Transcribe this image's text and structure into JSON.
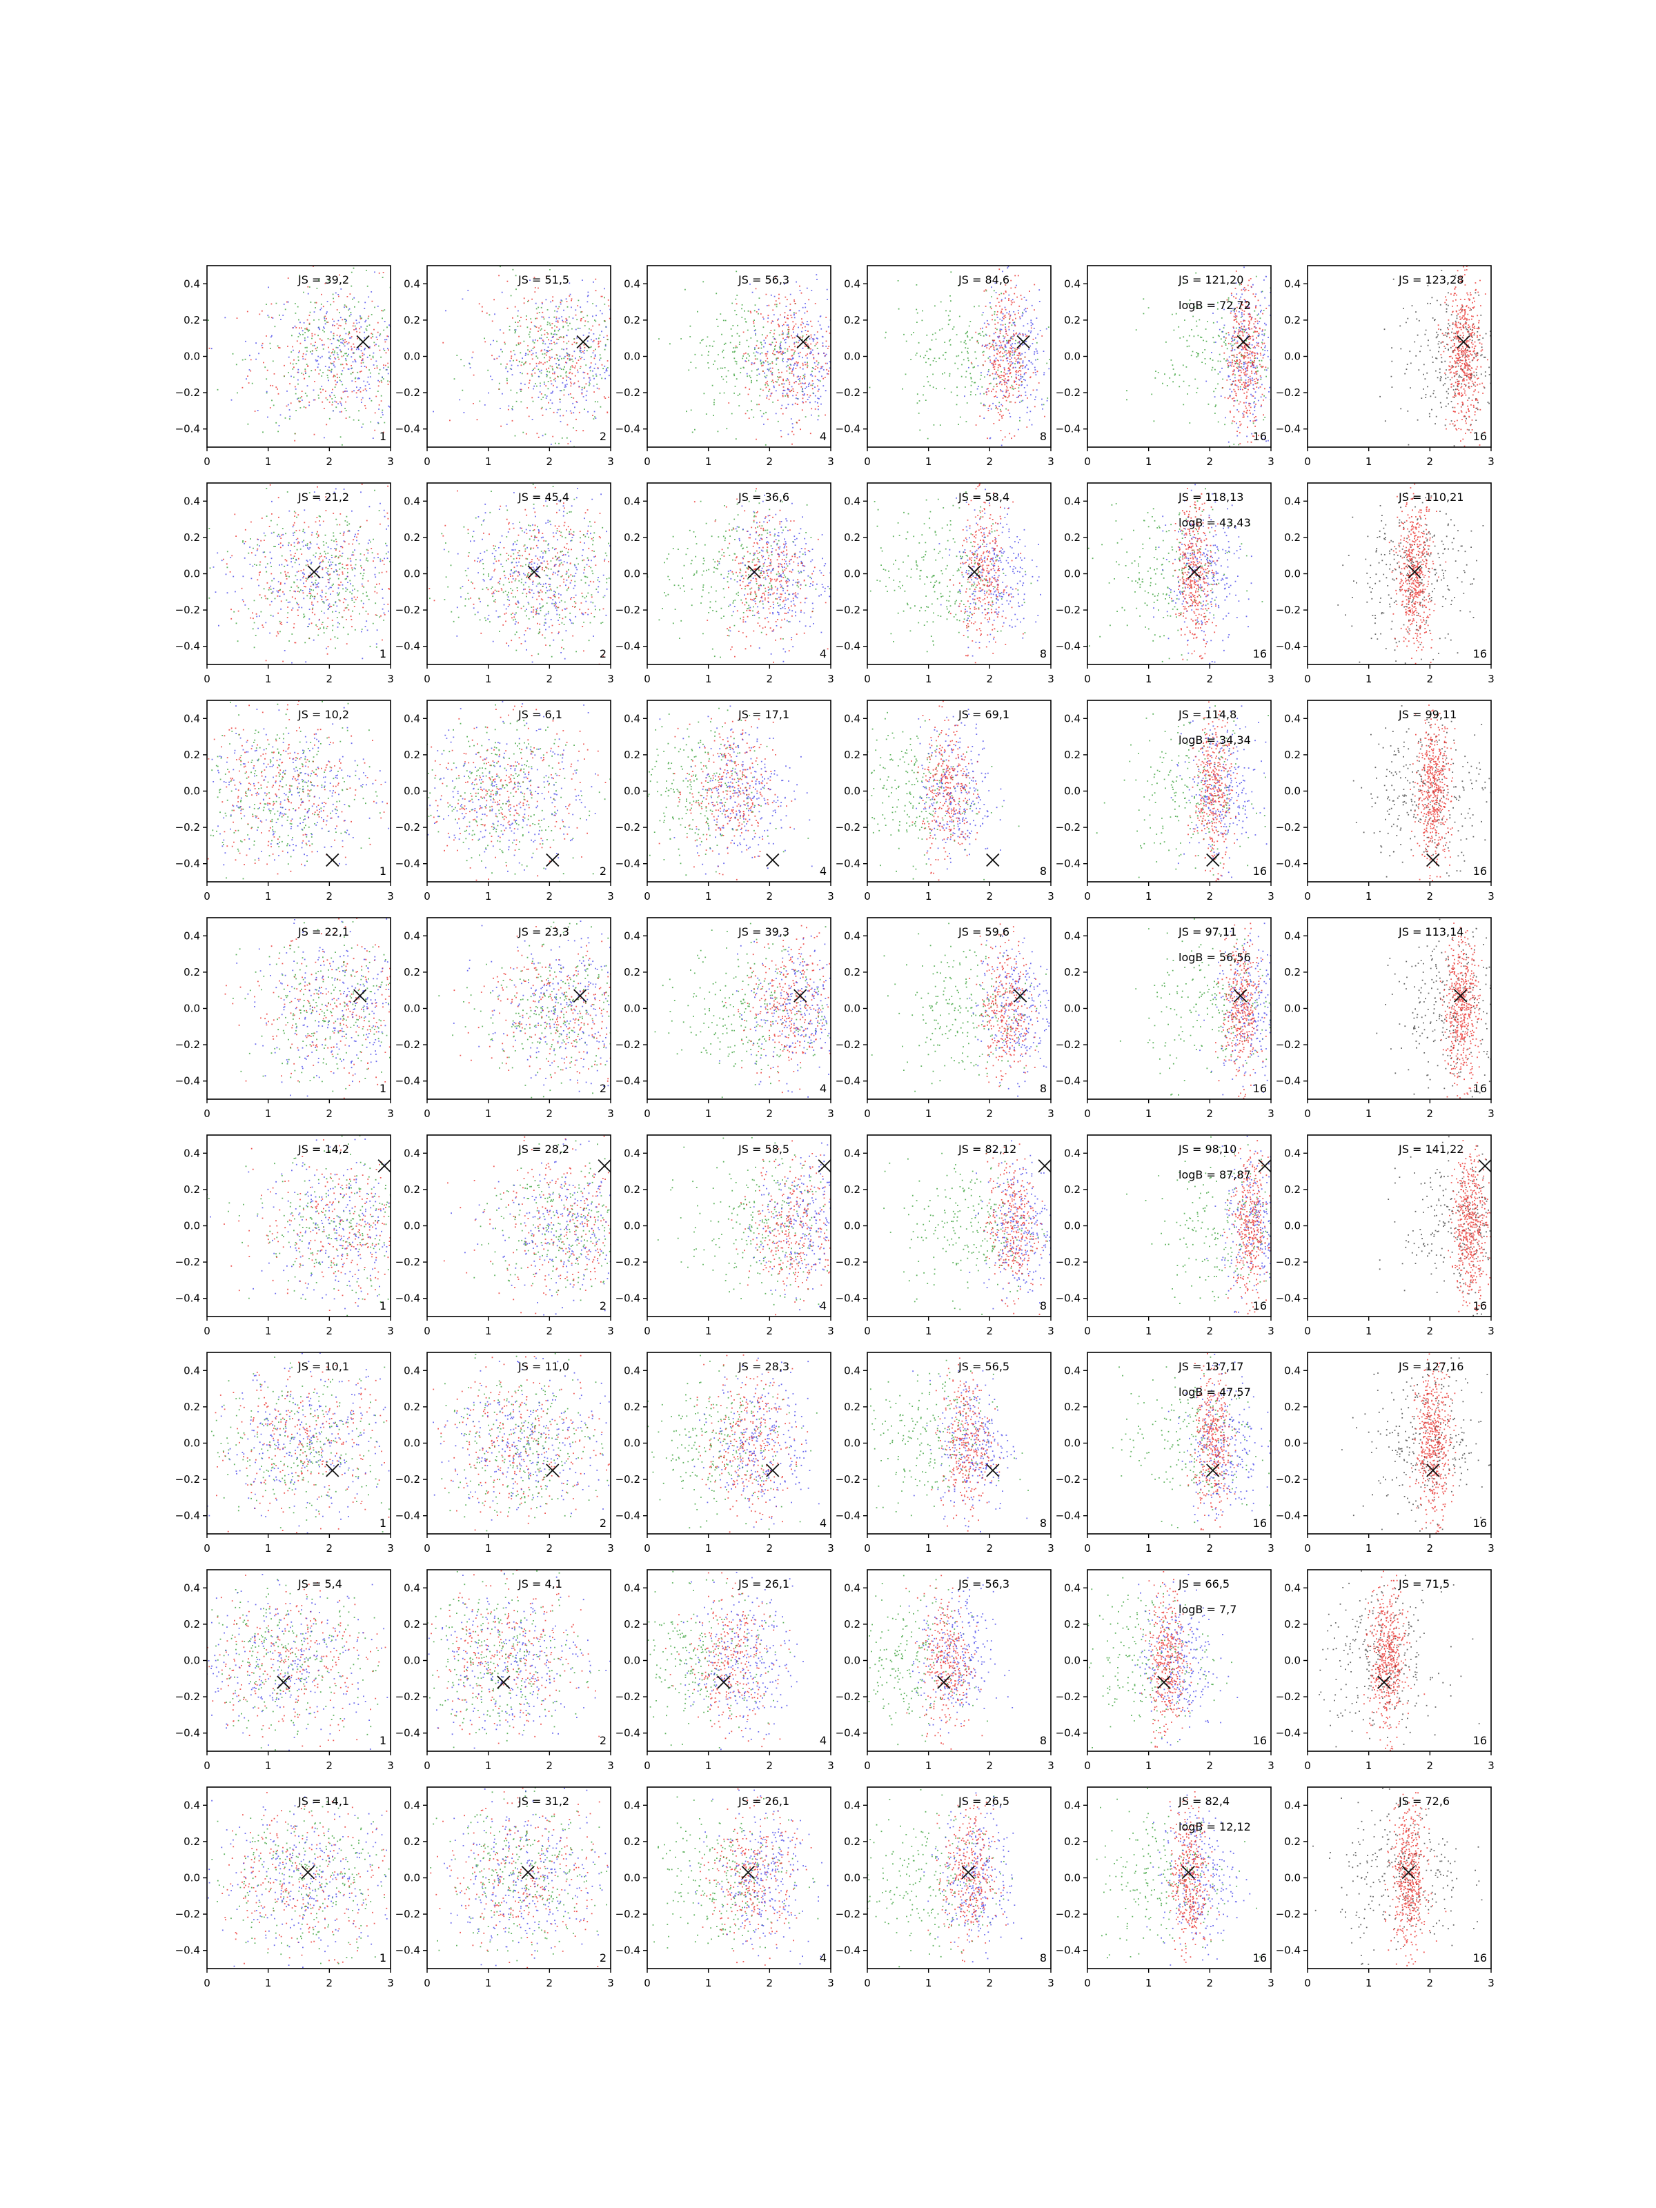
{
  "colors": {
    "red": "#e8201c",
    "green": "#2a9a2a",
    "blue": "#3a3ae8",
    "black": "#333333",
    "marker": "#111111"
  },
  "axis_defaults": {
    "xlim": [
      0,
      3
    ],
    "ylim": [
      -0.5,
      0.5
    ],
    "xticks": [
      0,
      1,
      2,
      3
    ],
    "yticks": [
      -0.4,
      -0.2,
      0.0,
      0.2,
      0.4
    ],
    "xtick_labels": [
      "0",
      "1",
      "2",
      "3"
    ],
    "ytick_labels": [
      "−0.4",
      "−0.2",
      "0.0",
      "0.2",
      "0.4"
    ]
  },
  "chart_data": {
    "type": "scatter",
    "layout": "grid 8 rows × 6 columns of small-multiple scatter panels",
    "column_corner_labels": [
      "1",
      "2",
      "4",
      "8",
      "16",
      "16"
    ],
    "rows": [
      {
        "marker": [
          2.55,
          0.08
        ],
        "js": [
          "JS = 39,2",
          "JS = 51,5",
          "JS = 56,3",
          "JS = 84,6",
          "JS = 121,20",
          "JS = 123,28"
        ],
        "logb": "logB = 72,72"
      },
      {
        "marker": [
          1.75,
          0.01
        ],
        "js": [
          "JS = 21,2",
          "JS = 45,4",
          "JS = 36,6",
          "JS = 58,4",
          "JS = 118,13",
          "JS = 110,21"
        ],
        "logb": "logB = 43,43"
      },
      {
        "marker": [
          2.05,
          -0.38
        ],
        "js": [
          "JS = 10,2",
          "JS = 6,1",
          "JS = 17,1",
          "JS = 69,1",
          "JS = 114,8",
          "JS = 99,11"
        ],
        "logb": "logB = 34,34"
      },
      {
        "marker": [
          2.5,
          0.07
        ],
        "js": [
          "JS = 22,1",
          "JS = 23,3",
          "JS = 39,3",
          "JS = 59,6",
          "JS = 97,11",
          "JS = 113,14"
        ],
        "logb": "logB = 56,56"
      },
      {
        "marker": [
          2.9,
          0.33
        ],
        "js": [
          "JS = 14,2",
          "JS = 28,2",
          "JS = 58,5",
          "JS = 82,12",
          "JS = 98,10",
          "JS = 141,22"
        ],
        "logb": "logB = 87,87"
      },
      {
        "marker": [
          2.05,
          -0.15
        ],
        "js": [
          "JS = 10,1",
          "JS = 11,0",
          "JS = 28,3",
          "JS = 56,5",
          "JS = 137,17",
          "JS = 127,16"
        ],
        "logb": "logB = 47,57"
      },
      {
        "marker": [
          1.25,
          -0.12
        ],
        "js": [
          "JS = 5,4",
          "JS = 4,1",
          "JS = 26,1",
          "JS = 56,3",
          "JS = 66,5",
          "JS = 71,5"
        ],
        "logb": "logB = 7,7"
      },
      {
        "marker": [
          1.65,
          0.03
        ],
        "js": [
          "JS = 14,1",
          "JS = 31,2",
          "JS = 26,1",
          "JS = 26,5",
          "JS = 82,4",
          "JS = 72,6"
        ],
        "logb": "logB = 12,12"
      }
    ],
    "series_colors": {
      "columns_1_to_5": [
        "red",
        "green",
        "blue"
      ],
      "column_6": [
        "black",
        "red"
      ]
    }
  }
}
